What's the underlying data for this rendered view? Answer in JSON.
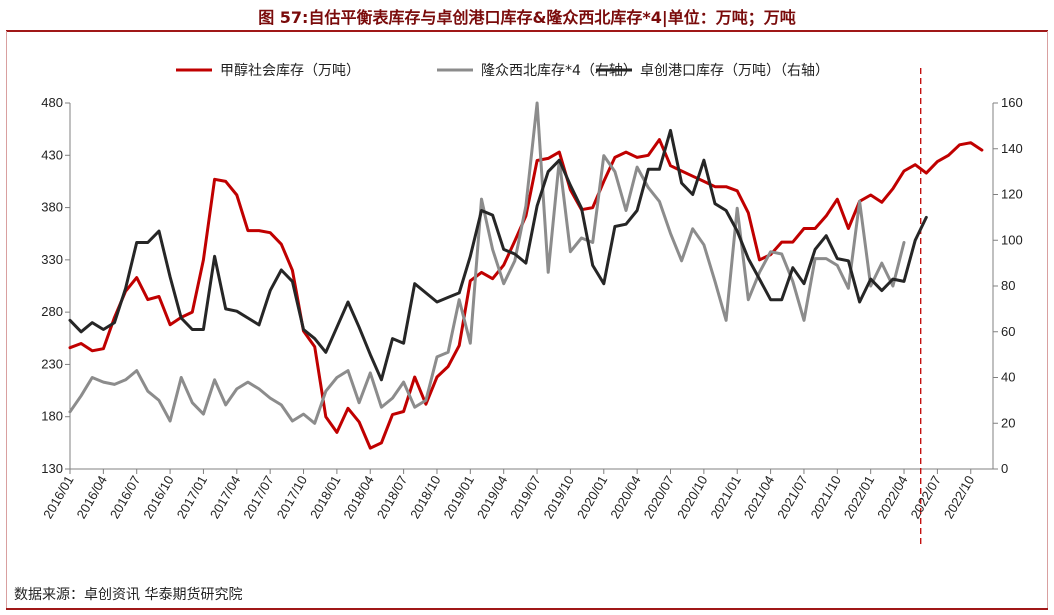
{
  "title": "图 57:自估平衡表库存与卓创港口库存&隆众西北库存*4|单位：万吨；万吨",
  "source": "数据来源：卓创资讯  华泰期货研究院",
  "chart_data": {
    "type": "line",
    "left_axis": {
      "min": 130,
      "max": 480,
      "ticks": [
        130,
        180,
        230,
        280,
        330,
        380,
        430,
        480
      ]
    },
    "right_axis": {
      "min": 0,
      "max": 160,
      "ticks": [
        0,
        20,
        40,
        60,
        80,
        100,
        120,
        140,
        160
      ]
    },
    "x_axis": {
      "start": "2016-01",
      "end": "2022-12",
      "labels": [
        "2016/01",
        "2016/04",
        "2016/07",
        "2016/10",
        "2017/01",
        "2017/04",
        "2017/07",
        "2017/10",
        "2018/01",
        "2018/04",
        "2018/07",
        "2018/10",
        "2019/01",
        "2019/04",
        "2019/07",
        "2019/10",
        "2020/01",
        "2020/04",
        "2020/07",
        "2020/10",
        "2021/01",
        "2021/04",
        "2021/07",
        "2021/10",
        "2022/01",
        "2022/04",
        "2022/07",
        "2022/10"
      ]
    },
    "marker_line": "2022-07",
    "series": [
      {
        "name": "甲醇社会库存（万吨）",
        "axis": "left",
        "color": "#c00000",
        "width": 3,
        "values": [
          246,
          250,
          243,
          245,
          275,
          300,
          313,
          292,
          295,
          268,
          275,
          280,
          330,
          407,
          405,
          392,
          358,
          358,
          356,
          345,
          320,
          262,
          247,
          180,
          165,
          188,
          175,
          150,
          155,
          182,
          185,
          218,
          192,
          218,
          228,
          248,
          310,
          318,
          312,
          325,
          348,
          372,
          425,
          427,
          433,
          397,
          378,
          380,
          405,
          428,
          433,
          428,
          430,
          445,
          420,
          415,
          410,
          405,
          400,
          400,
          396,
          375,
          330,
          335,
          347,
          347,
          360,
          360,
          372,
          388,
          360,
          386,
          392,
          385,
          398,
          415,
          421,
          413,
          424,
          430,
          440,
          442,
          435
        ]
      },
      {
        "name": "隆众西北库存*4（右轴）",
        "axis": "right",
        "color": "#8c8c8c",
        "width": 3,
        "values": [
          25,
          32,
          40,
          38,
          37,
          39,
          43,
          34,
          30,
          21,
          40,
          29,
          24,
          39,
          28,
          35,
          38,
          35,
          31,
          28,
          21,
          24,
          20,
          34,
          40,
          43,
          29,
          42,
          27,
          31,
          38,
          27,
          30,
          49,
          51,
          74,
          55,
          118,
          96,
          81,
          91,
          115,
          180,
          86,
          135,
          95,
          101,
          99,
          137,
          130,
          113,
          132,
          123,
          117,
          103,
          91,
          105,
          98,
          82,
          65,
          114,
          74,
          86,
          95,
          94,
          82,
          65,
          92,
          92,
          89,
          79,
          117,
          80,
          90,
          80,
          99
        ]
      },
      {
        "name": "卓创港口库存（万吨）（右轴）",
        "axis": "right",
        "color": "#262626",
        "width": 3,
        "values": [
          65,
          60,
          64,
          61,
          64,
          79,
          99,
          99,
          104,
          84,
          66,
          61,
          61,
          93,
          70,
          69,
          66,
          63,
          78,
          87,
          82,
          61,
          57,
          51,
          62,
          73,
          62,
          50,
          39,
          57,
          55,
          81,
          77,
          73,
          75,
          77,
          93,
          113,
          111,
          96,
          94,
          90,
          115,
          130,
          135,
          124,
          114,
          89,
          81,
          106,
          107,
          113,
          131,
          131,
          148,
          125,
          120,
          135,
          116,
          113,
          104,
          92,
          83,
          74,
          74,
          88,
          81,
          96,
          102,
          92,
          91,
          73,
          83,
          78,
          83,
          82,
          100,
          110
        ]
      }
    ]
  }
}
